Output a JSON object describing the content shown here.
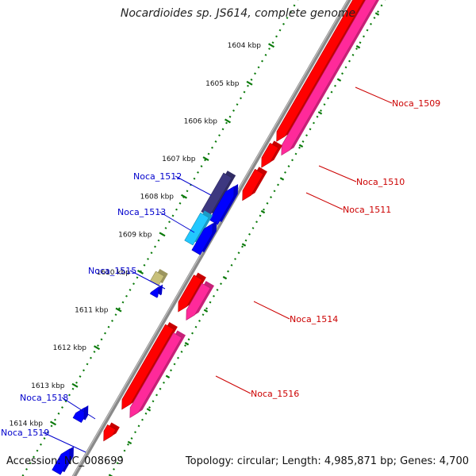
{
  "title": "Nocardioides sp. JS614, complete genome",
  "footer": {
    "accession_label": "Accession:",
    "accession": "NC_008699",
    "topology": "Topology: circular; Length: 4,985,871 bp; Genes: 4,700"
  },
  "colors": {
    "forward_red": "#ff0000",
    "reverse_magenta": "#ff2a9a",
    "blue": "#0000ff",
    "dark_purple": "#3d3880",
    "cyan": "#22c8ff",
    "olive": "#c8c07a",
    "backbone": "#8a8a8a",
    "tick_green": "#0a7a0a",
    "label_red": "#cc0000",
    "label_blue": "#0000cc"
  },
  "scale_ticks": [
    {
      "label": "1604 kbp"
    },
    {
      "label": "1605 kbp"
    },
    {
      "label": "1606 kbp"
    },
    {
      "label": "1607 kbp"
    },
    {
      "label": "1608 kbp"
    },
    {
      "label": "1609 kbp"
    },
    {
      "label": "1610 kbp"
    },
    {
      "label": "1611 kbp"
    },
    {
      "label": "1612 kbp"
    },
    {
      "label": "1613 kbp"
    },
    {
      "label": "1614 kbp"
    }
  ],
  "genes": [
    {
      "name": "Noca_1509",
      "strand": "forward",
      "color": "#ff0000"
    },
    {
      "name": "Noca_1510",
      "strand": "forward",
      "color": "#ff0000"
    },
    {
      "name": "Noca_1511",
      "strand": "forward",
      "color": "#ff0000"
    },
    {
      "name": "Noca_1512",
      "strand": "reverse",
      "color": "#3d3880"
    },
    {
      "name": "Noca_1513",
      "strand": "reverse",
      "color": "#22c8ff"
    },
    {
      "name": "Noca_1514",
      "strand": "forward",
      "color": "#ff0000"
    },
    {
      "name": "Noca_1515",
      "strand": "reverse",
      "color": "#c8c07a"
    },
    {
      "name": "Noca_1516",
      "strand": "forward",
      "color": "#ff0000"
    },
    {
      "name": "Noca_1518",
      "strand": "reverse",
      "color": "#0000ff"
    },
    {
      "name": "Noca_1519",
      "strand": "reverse",
      "color": "#0000ff"
    }
  ]
}
